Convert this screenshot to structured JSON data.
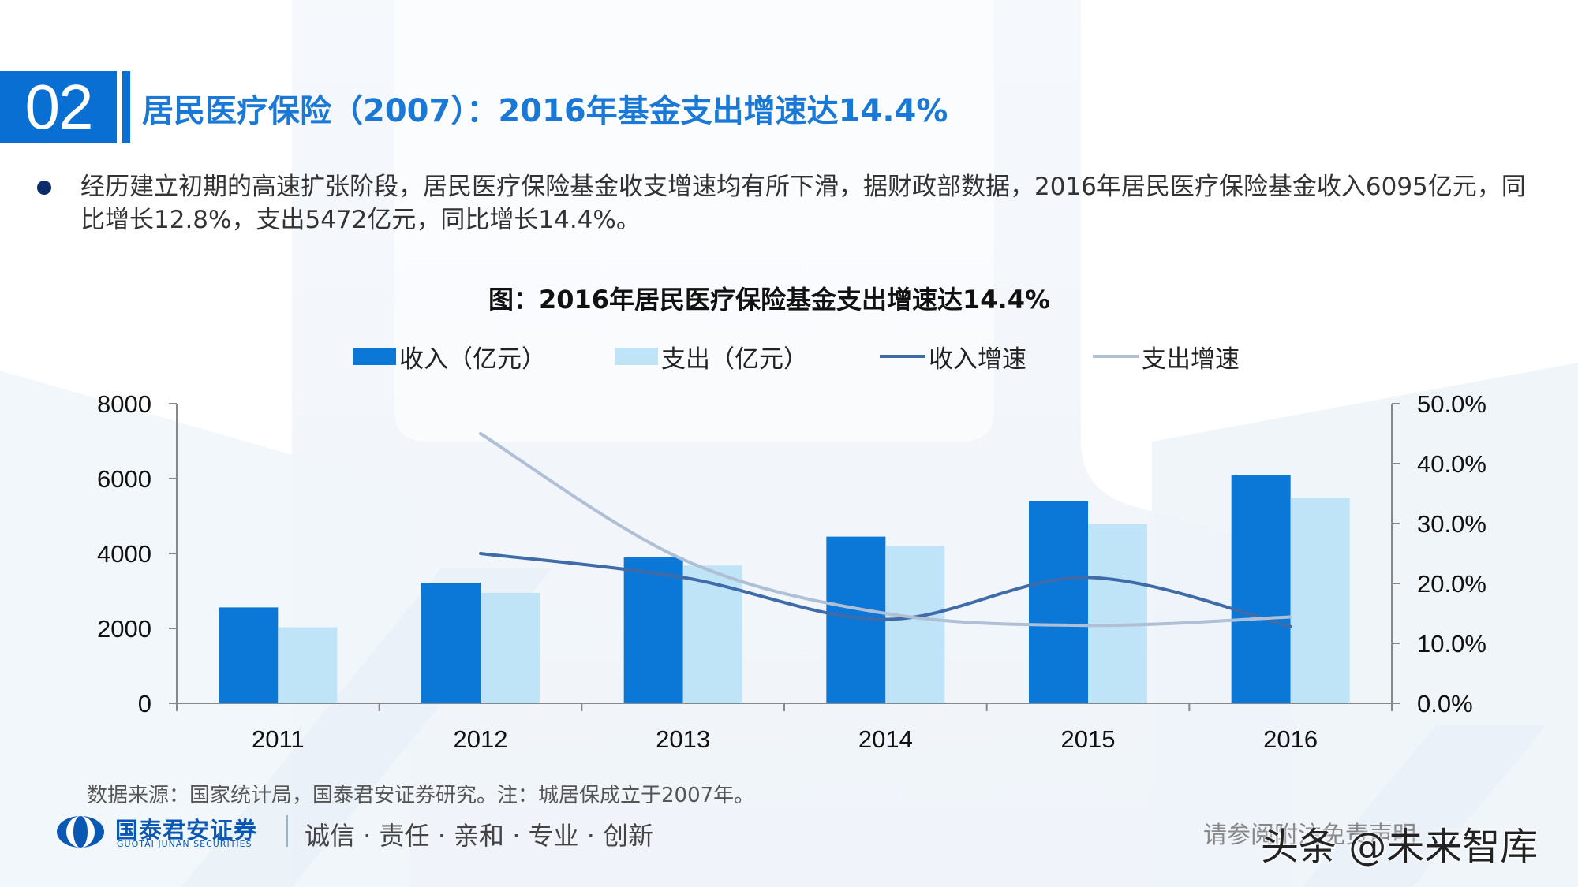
{
  "header": {
    "section_number": "02",
    "title": "居民医疗保险（2007）：2016年基金支出增速达14.4%"
  },
  "bullet": {
    "text": "经历建立初期的高速扩张阶段，居民医疗保险基金收支增速均有所下滑，据财政部数据，2016年居民医疗保险基金收入6095亿元，同比增长12.8%，支出5472亿元，同比增长14.4%。"
  },
  "source_note": "数据来源：国家统计局，国泰君安证券研究。注：城居保成立于2007年。",
  "footer": {
    "logo_cn": "国泰君安证券",
    "logo_en": "GUOTAI JUNAN SECURITIES",
    "slogan": "诚信 · 责任 · 亲和 · 专业 · 创新",
    "disclaimer": "请参阅附注免责声明",
    "watermark": "头条 @未来智库"
  },
  "colors": {
    "accent": "#0a6fd3",
    "income_bar": "#0b78d8",
    "expense_bar": "#bfe3f7",
    "income_growth_line": "#3f6ca8",
    "expense_growth_line": "#aebfd6"
  },
  "chart_data": {
    "type": "bar",
    "title": "图：2016年居民医疗保险基金支出增速达14.4%",
    "categories": [
      "2011",
      "2012",
      "2013",
      "2014",
      "2015",
      "2016"
    ],
    "series": [
      {
        "name": "收入（亿元）",
        "type": "bar",
        "axis": "left",
        "values": [
          2560,
          3220,
          3900,
          4450,
          5390,
          6095
        ]
      },
      {
        "name": "支出（亿元）",
        "type": "bar",
        "axis": "left",
        "values": [
          2030,
          2950,
          3680,
          4200,
          4780,
          5472
        ]
      },
      {
        "name": "收入增速",
        "type": "line",
        "axis": "right",
        "values": [
          null,
          25.0,
          21.0,
          14.0,
          21.0,
          12.8
        ]
      },
      {
        "name": "支出增速",
        "type": "line",
        "axis": "right",
        "values": [
          null,
          45.0,
          24.0,
          15.0,
          13.0,
          14.4
        ]
      }
    ],
    "y_left": {
      "min": 0,
      "max": 8000,
      "ticks": [
        "0",
        "2000",
        "4000",
        "6000",
        "8000"
      ]
    },
    "y_right": {
      "min": 0,
      "max": 50,
      "ticks": [
        "0.0%",
        "10.0%",
        "20.0%",
        "30.0%",
        "40.0%",
        "50.0%"
      ]
    },
    "legend_position": "top",
    "grid": false
  }
}
